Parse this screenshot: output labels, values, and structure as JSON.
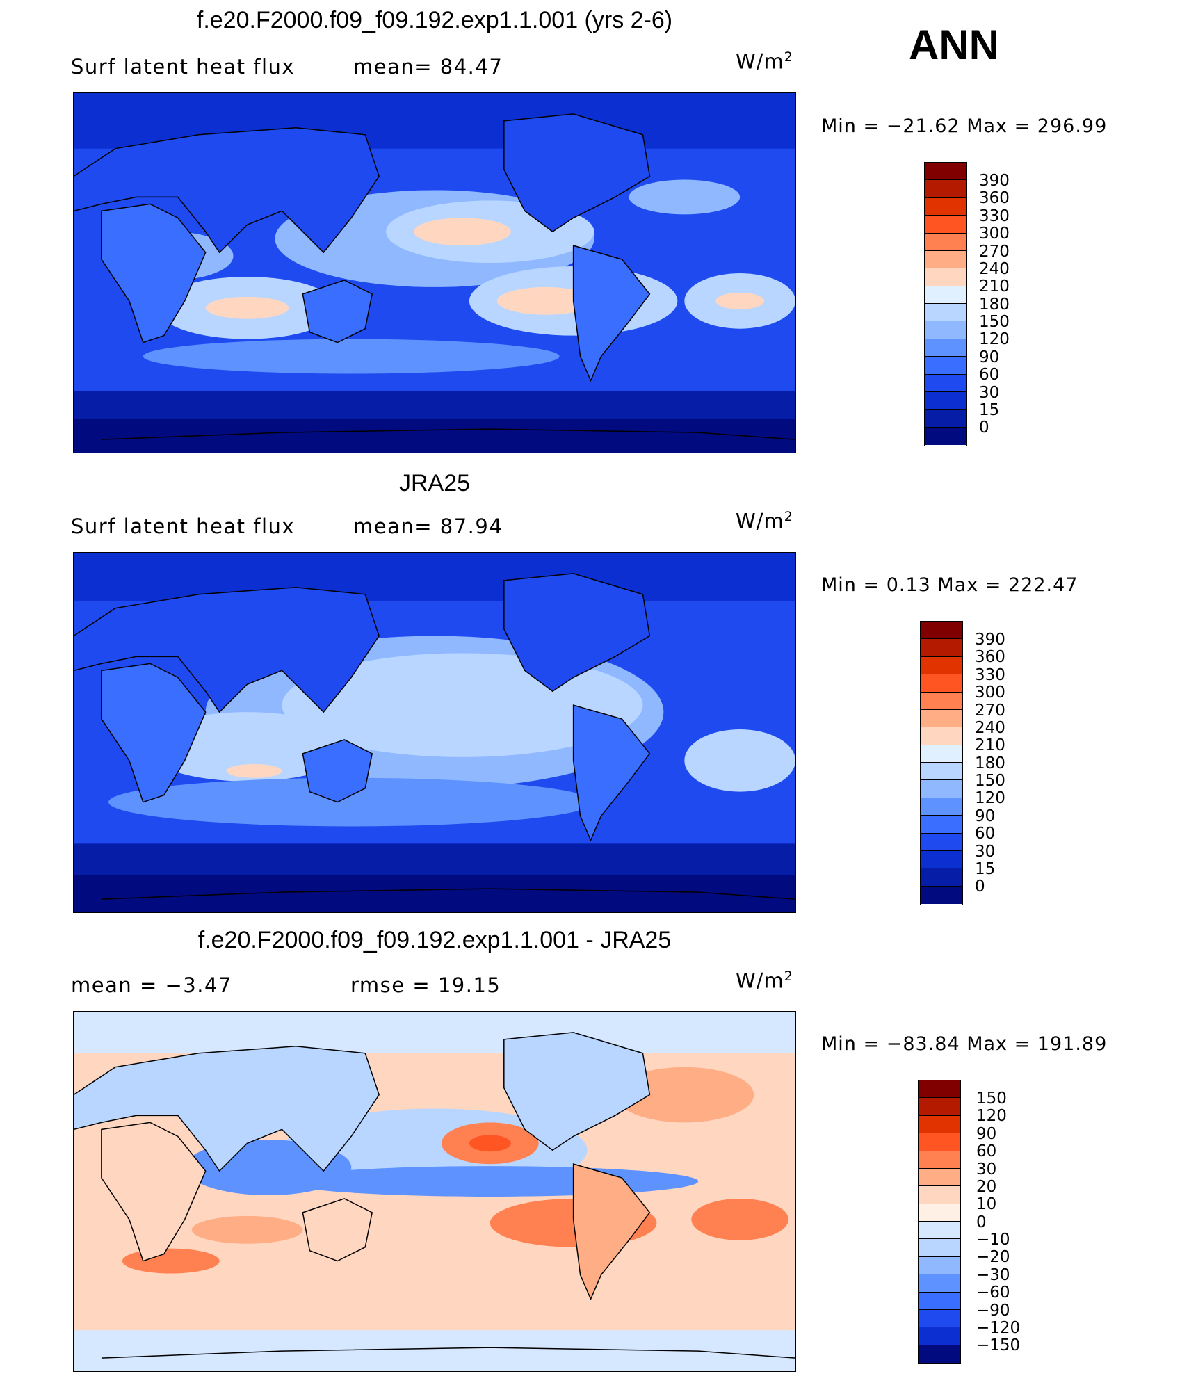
{
  "season": "ANN",
  "panels": [
    {
      "id": "model",
      "title": "f.e20.F2000.f09_f09.192.exp1.1.001 (yrs 2-6)",
      "left_label": "Surf  latent  heat  flux",
      "right_label": "mean=   84.47",
      "units": "W/m",
      "units_sup": "2",
      "minmax": "Min  =  −21.62  Max  =  296.99",
      "colorbar": {
        "levels": [
          "390",
          "360",
          "330",
          "300",
          "270",
          "240",
          "210",
          "180",
          "150",
          "120",
          "90",
          "60",
          "30",
          "15",
          "0"
        ],
        "colors": [
          "#800000",
          "#b31a00",
          "#e03300",
          "#ff5522",
          "#ff8050",
          "#ffad85",
          "#ffd6c0",
          "#e0f0ff",
          "#b8d6ff",
          "#8fb8ff",
          "#5e92ff",
          "#3a6eff",
          "#1e4af0",
          "#0b2fd0",
          "#061da8",
          "#020a80"
        ]
      }
    },
    {
      "id": "obs",
      "title": "JRA25",
      "left_label": "Surf  latent  heat  flux",
      "right_label": "mean=   87.94",
      "units": "W/m",
      "units_sup": "2",
      "minmax": "Min  =     0.13  Max  =  222.47",
      "colorbar": {
        "levels": [
          "390",
          "360",
          "330",
          "300",
          "270",
          "240",
          "210",
          "180",
          "150",
          "120",
          "90",
          "60",
          "30",
          "15",
          "0"
        ],
        "colors": [
          "#800000",
          "#b31a00",
          "#e03300",
          "#ff5522",
          "#ff8050",
          "#ffad85",
          "#ffd6c0",
          "#e0f0ff",
          "#b8d6ff",
          "#8fb8ff",
          "#5e92ff",
          "#3a6eff",
          "#1e4af0",
          "#0b2fd0",
          "#061da8",
          "#020a80"
        ]
      }
    },
    {
      "id": "diff",
      "title": "f.e20.F2000.f09_f09.192.exp1.1.001 - JRA25",
      "left_label": "mean  =     −3.47",
      "right_label": "rmse  =     19.15",
      "units": "W/m",
      "units_sup": "2",
      "minmax": "Min  =  −83.84  Max  =  191.89",
      "colorbar": {
        "levels": [
          "150",
          "120",
          "90",
          "60",
          "30",
          "20",
          "10",
          "0",
          "−10",
          "−20",
          "−30",
          "−60",
          "−90",
          "−120",
          "−150"
        ],
        "colors": [
          "#800000",
          "#b31a00",
          "#e03300",
          "#ff5522",
          "#ff8050",
          "#ffad85",
          "#ffd6c0",
          "#fff0e6",
          "#d6e8ff",
          "#b8d6ff",
          "#8fb8ff",
          "#5e92ff",
          "#3a6eff",
          "#1e4af0",
          "#0b2fd0",
          "#020a80"
        ]
      }
    }
  ]
}
